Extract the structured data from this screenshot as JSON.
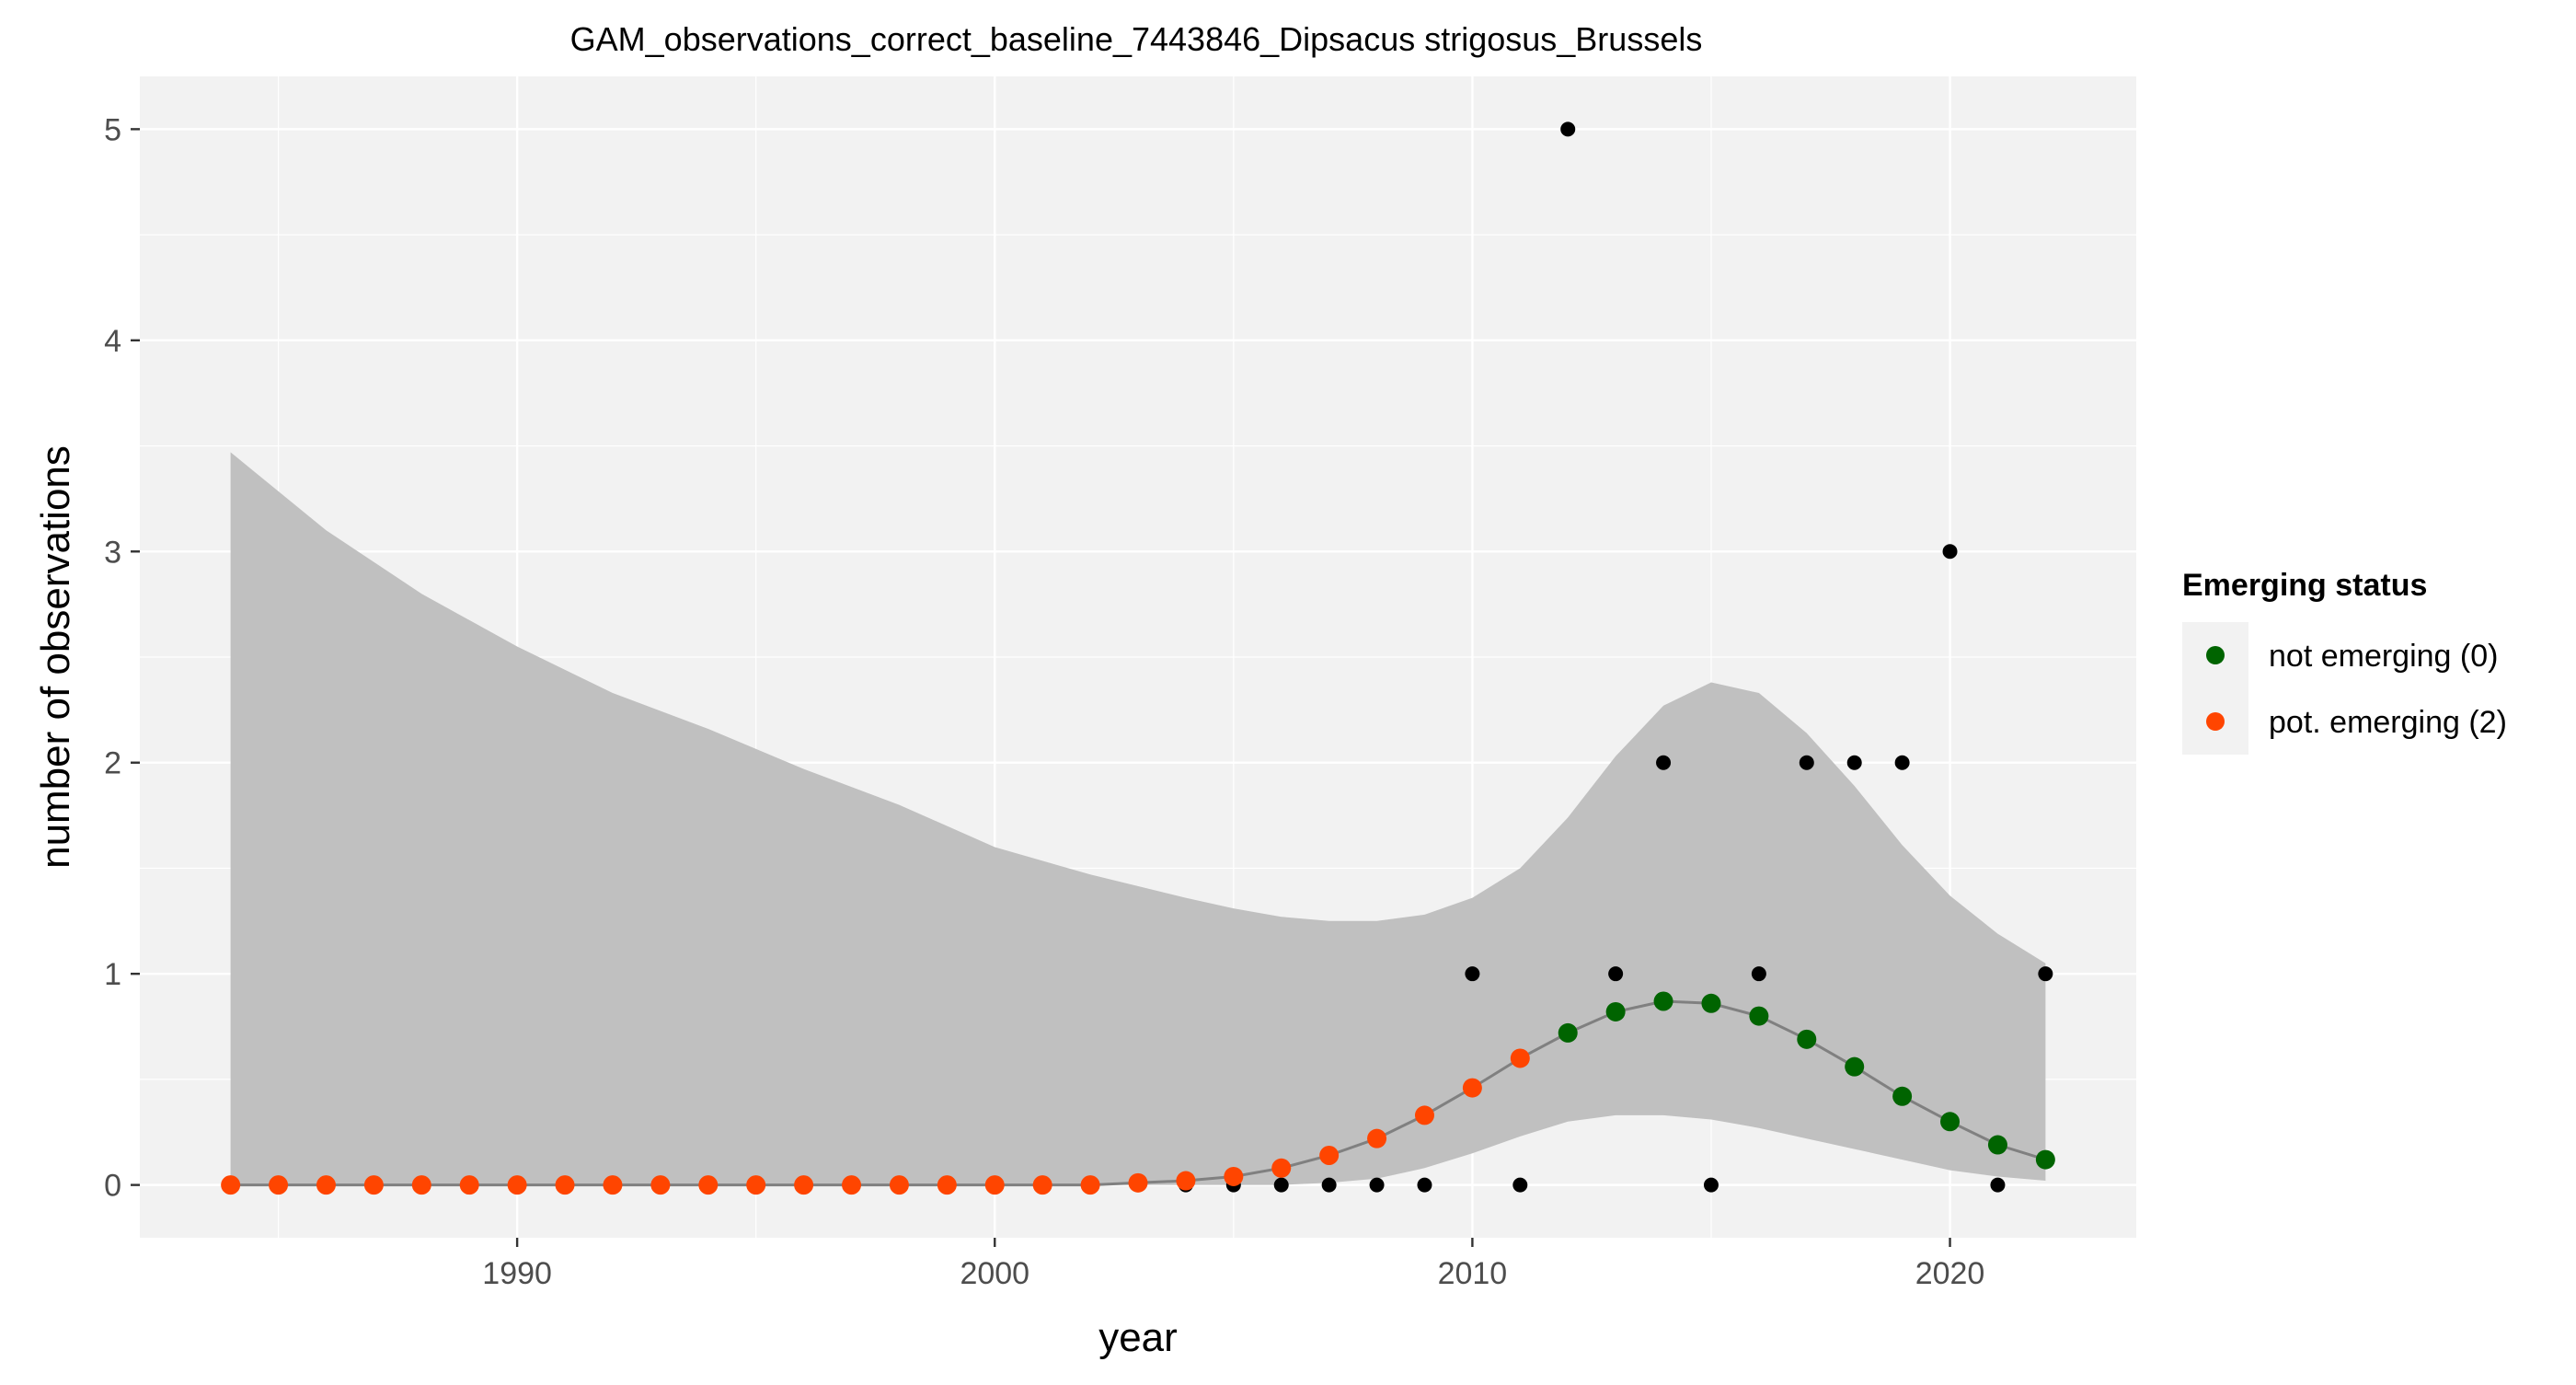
{
  "chart_data": {
    "type": "scatter",
    "title": "GAM_observations_correct_baseline_7443846_Dipsacus strigosus_Brussels",
    "xlabel": "year",
    "ylabel": "number of observations",
    "xlim": [
      1982.1,
      2023.9
    ],
    "ylim": [
      -0.25,
      5.25
    ],
    "x_ticks": [
      1990,
      2000,
      2010,
      2020
    ],
    "y_ticks": [
      0,
      1,
      2,
      3,
      4,
      5
    ],
    "grid": true,
    "legend": {
      "title": "Emerging status",
      "position": "right",
      "entries": [
        {
          "label": "not emerging (0)",
          "color": "#006400"
        },
        {
          "label": "pot. emerging (2)",
          "color": "#FF4500"
        }
      ]
    },
    "observations": {
      "x": [
        2004,
        2005,
        2006,
        2007,
        2008,
        2009,
        2010,
        2011,
        2012,
        2013,
        2014,
        2015,
        2016,
        2017,
        2018,
        2019,
        2020,
        2021,
        2022
      ],
      "y": [
        0,
        0,
        0,
        0,
        0,
        0,
        1,
        0,
        5,
        1,
        2,
        0,
        1,
        2,
        2,
        2,
        3,
        0,
        1
      ],
      "color": "#000000"
    },
    "fit": {
      "x": [
        1984,
        1985,
        1986,
        1987,
        1988,
        1989,
        1990,
        1991,
        1992,
        1993,
        1994,
        1995,
        1996,
        1997,
        1998,
        1999,
        2000,
        2001,
        2002,
        2003,
        2004,
        2005,
        2006,
        2007,
        2008,
        2009,
        2010,
        2011,
        2012,
        2013,
        2014,
        2015,
        2016,
        2017,
        2018,
        2019,
        2020,
        2021,
        2022
      ],
      "y": [
        0,
        0,
        0,
        0,
        0,
        0,
        0,
        0,
        0,
        0,
        0,
        0,
        0,
        0,
        0,
        0,
        0,
        0,
        0,
        0.01,
        0.02,
        0.04,
        0.08,
        0.14,
        0.22,
        0.33,
        0.46,
        0.6,
        0.72,
        0.82,
        0.87,
        0.86,
        0.8,
        0.69,
        0.56,
        0.42,
        0.3,
        0.19,
        0.12
      ],
      "status": [
        2,
        2,
        2,
        2,
        2,
        2,
        2,
        2,
        2,
        2,
        2,
        2,
        2,
        2,
        2,
        2,
        2,
        2,
        2,
        2,
        2,
        2,
        2,
        2,
        2,
        2,
        2,
        2,
        0,
        0,
        0,
        0,
        0,
        0,
        0,
        0,
        0,
        0,
        0
      ],
      "line_color": "#808080"
    },
    "ci_band": {
      "x": [
        1984,
        1986,
        1988,
        1990,
        1992,
        1994,
        1996,
        1998,
        2000,
        2002,
        2004,
        2005,
        2006,
        2007,
        2008,
        2009,
        2010,
        2011,
        2012,
        2013,
        2014,
        2015,
        2016,
        2017,
        2018,
        2019,
        2020,
        2021,
        2022
      ],
      "upper": [
        3.47,
        3.1,
        2.8,
        2.55,
        2.33,
        2.16,
        1.97,
        1.8,
        1.6,
        1.47,
        1.36,
        1.31,
        1.27,
        1.25,
        1.25,
        1.28,
        1.36,
        1.5,
        1.74,
        2.03,
        2.27,
        2.38,
        2.33,
        2.14,
        1.89,
        1.61,
        1.37,
        1.19,
        1.05
      ],
      "lower": [
        0,
        0,
        0,
        0,
        0,
        0,
        0,
        0,
        0,
        0,
        0,
        0,
        0,
        0.01,
        0.03,
        0.08,
        0.15,
        0.23,
        0.3,
        0.33,
        0.33,
        0.31,
        0.27,
        0.22,
        0.17,
        0.12,
        0.07,
        0.04,
        0.02
      ],
      "color": "#C0C0C0"
    }
  }
}
